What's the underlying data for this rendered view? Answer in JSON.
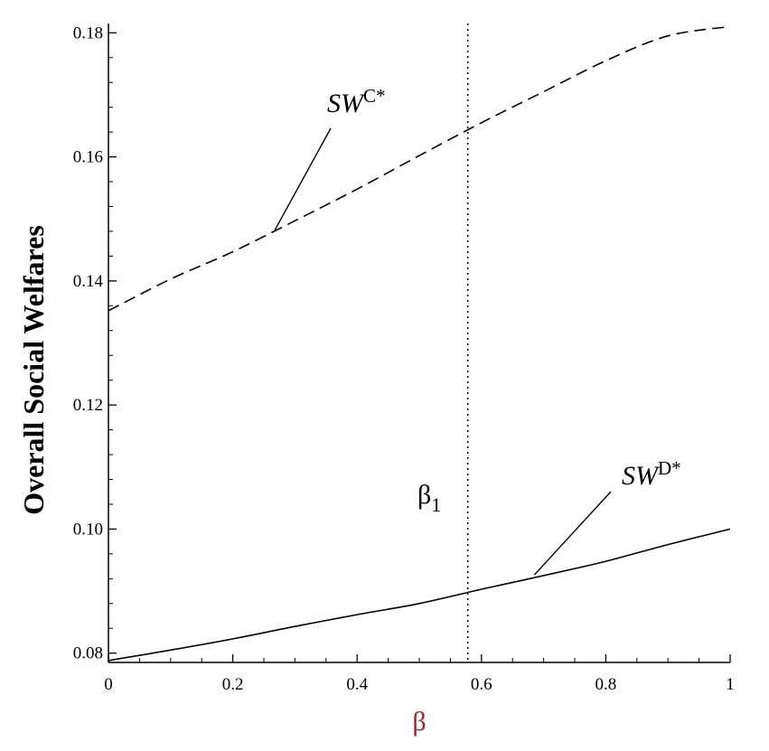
{
  "chart_data": {
    "type": "line",
    "xlabel": "β",
    "ylabel": "Overall Social Welfares",
    "xlim": [
      0,
      1
    ],
    "ylim": [
      0.0785,
      0.1815
    ],
    "x_ticks": [
      {
        "value": 0,
        "label": "0"
      },
      {
        "value": 0.2,
        "label": "0.2"
      },
      {
        "value": 0.4,
        "label": "0.4"
      },
      {
        "value": 0.6,
        "label": "0.6"
      },
      {
        "value": 0.8,
        "label": "0.8"
      },
      {
        "value": 1,
        "label": "1"
      }
    ],
    "y_ticks": [
      {
        "value": 0.08,
        "label": "0.08"
      },
      {
        "value": 0.1,
        "label": "0.10"
      },
      {
        "value": 0.12,
        "label": "0.12"
      },
      {
        "value": 0.14,
        "label": "0.14"
      },
      {
        "value": 0.16,
        "label": "0.16"
      },
      {
        "value": 0.18,
        "label": "0.18"
      }
    ],
    "grid": false,
    "x": [
      0,
      0.1,
      0.2,
      0.3,
      0.4,
      0.5,
      0.6,
      0.7,
      0.8,
      0.9,
      1.0
    ],
    "series": [
      {
        "key": "SWC",
        "style": "dashed",
        "values": [
          0.1352,
          0.1403,
          0.1447,
          0.1497,
          0.1548,
          0.1602,
          0.1655,
          0.1705,
          0.1755,
          0.1795,
          0.181
        ]
      },
      {
        "key": "SWD",
        "style": "solid",
        "values": [
          0.0788,
          0.0805,
          0.0823,
          0.0843,
          0.0862,
          0.088,
          0.0903,
          0.0925,
          0.0948,
          0.0975,
          0.1
        ]
      }
    ],
    "vline": {
      "x": 0.578,
      "style": "dotted"
    },
    "annotations": {
      "swc": {
        "base": "SW",
        "sup": "C*"
      },
      "swd": {
        "base": "SW",
        "sup": "D*"
      },
      "beta1": {
        "base": "β",
        "sub": "1"
      }
    }
  }
}
